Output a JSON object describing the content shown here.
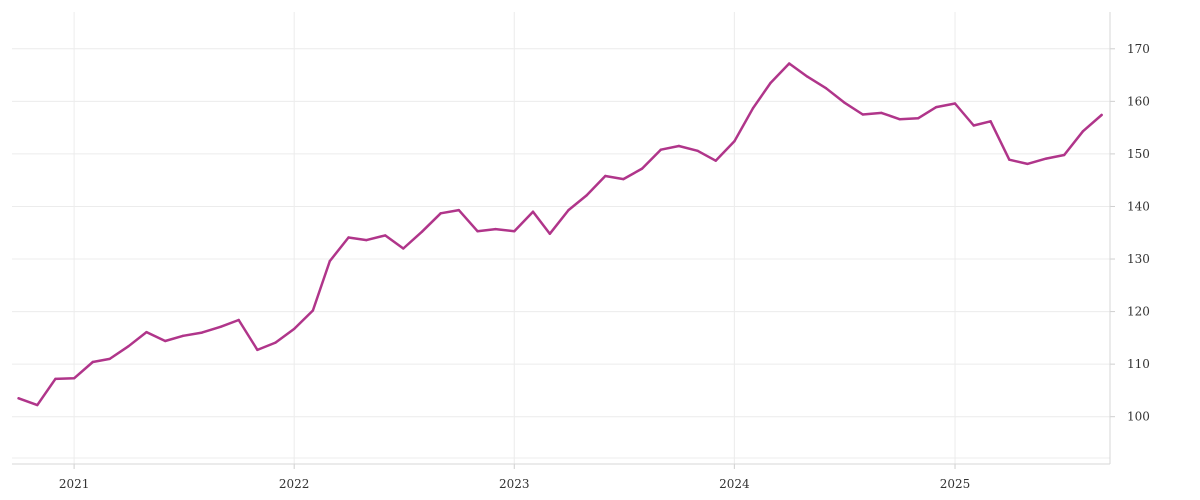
{
  "chart_data": {
    "type": "line",
    "title": "",
    "xlabel": "",
    "ylabel": "",
    "x_tick_labels": [
      "2021",
      "2022",
      "2023",
      "2024",
      "2025"
    ],
    "y_tick_labels": [
      "100",
      "110",
      "120",
      "130",
      "140",
      "150",
      "160",
      "170"
    ],
    "ylim": [
      91,
      177
    ],
    "xlim": [
      "2020-09-20",
      "2025-09-15"
    ],
    "y_axis_side": "right",
    "grid": true,
    "legend": "none",
    "series": [
      {
        "color": "#b0358a",
        "points": [
          [
            "2020-10",
            103.5
          ],
          [
            "2020-11",
            102.2
          ],
          [
            "2020-12",
            107.2
          ],
          [
            "2021-01",
            107.3
          ],
          [
            "2021-02",
            110.4
          ],
          [
            "2021-03",
            111.0
          ],
          [
            "2021-04",
            113.4
          ],
          [
            "2021-05",
            116.1
          ],
          [
            "2021-06",
            114.4
          ],
          [
            "2021-07",
            115.4
          ],
          [
            "2021-08",
            116.0
          ],
          [
            "2021-09",
            117.1
          ],
          [
            "2021-10",
            118.4
          ],
          [
            "2021-11",
            112.7
          ],
          [
            "2021-12",
            114.1
          ],
          [
            "2022-01",
            116.7
          ],
          [
            "2022-02",
            120.2
          ],
          [
            "2022-03",
            129.6
          ],
          [
            "2022-04",
            134.1
          ],
          [
            "2022-05",
            133.6
          ],
          [
            "2022-06",
            134.5
          ],
          [
            "2022-07",
            132.0
          ],
          [
            "2022-08",
            135.2
          ],
          [
            "2022-09",
            138.7
          ],
          [
            "2022-10",
            139.3
          ],
          [
            "2022-11",
            135.3
          ],
          [
            "2022-12",
            135.7
          ],
          [
            "2023-01",
            135.3
          ],
          [
            "2023-02",
            139.0
          ],
          [
            "2023-03",
            134.8
          ],
          [
            "2023-04",
            139.3
          ],
          [
            "2023-05",
            142.1
          ],
          [
            "2023-06",
            145.8
          ],
          [
            "2023-07",
            145.2
          ],
          [
            "2023-08",
            147.2
          ],
          [
            "2023-09",
            150.8
          ],
          [
            "2023-10",
            151.5
          ],
          [
            "2023-11",
            150.6
          ],
          [
            "2023-12",
            148.7
          ],
          [
            "2024-01",
            152.4
          ],
          [
            "2024-02",
            158.7
          ],
          [
            "2024-03",
            163.5
          ],
          [
            "2024-04",
            167.2
          ],
          [
            "2024-05",
            164.7
          ],
          [
            "2024-06",
            162.5
          ],
          [
            "2024-07",
            159.8
          ],
          [
            "2024-08",
            157.5
          ],
          [
            "2024-09",
            157.8
          ],
          [
            "2024-10",
            156.6
          ],
          [
            "2024-11",
            156.8
          ],
          [
            "2024-12",
            158.9
          ],
          [
            "2025-01",
            159.6
          ],
          [
            "2025-02",
            155.4
          ],
          [
            "2025-03",
            156.2
          ],
          [
            "2025-04",
            148.9
          ],
          [
            "2025-05",
            148.1
          ],
          [
            "2025-06",
            149.1
          ],
          [
            "2025-07",
            149.8
          ],
          [
            "2025-08",
            154.3
          ],
          [
            "2025-09",
            157.4
          ]
        ]
      }
    ]
  }
}
